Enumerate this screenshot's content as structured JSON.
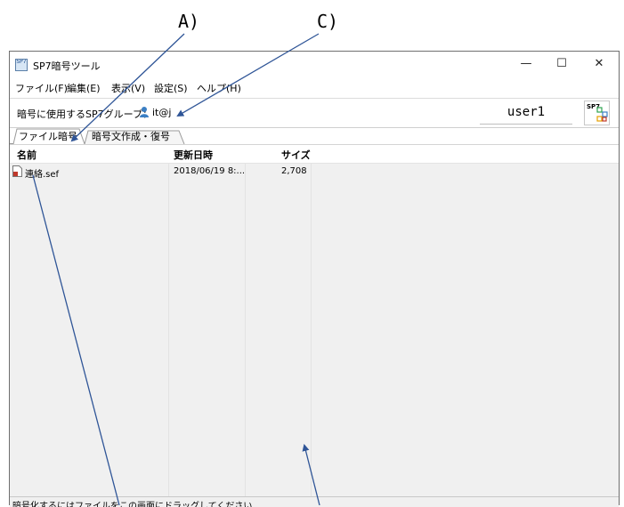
{
  "callouts": {
    "a": "A)",
    "c": "C)"
  },
  "window": {
    "title": "SP7暗号ツール",
    "app_icon_text": "SP7",
    "controls": {
      "minimize": "—",
      "maximize": "☐",
      "close": "✕"
    }
  },
  "menu": [
    {
      "label": "ファイル(F)"
    },
    {
      "label": "編集(E)"
    },
    {
      "label": "表示(V)"
    },
    {
      "label": "設定(S)"
    },
    {
      "label": "ヘルプ(H)"
    }
  ],
  "group_row": {
    "label": "暗号に使用するSP7グループ：",
    "value": "it@j",
    "user": "user1",
    "logo_text": "SP7"
  },
  "tabs": [
    {
      "label": "ファイル暗号"
    },
    {
      "label": "暗号文作成・復号"
    }
  ],
  "table": {
    "columns": [
      "名前",
      "更新日時",
      "サイズ"
    ],
    "rows": [
      {
        "name": "連絡.sef",
        "date": "2018/06/19 8:...",
        "size": "2,708"
      }
    ]
  },
  "status": {
    "text": "暗号化するにはファイルをこの画面にドラッグしてください"
  },
  "colors": {
    "arrow": "#2f5597",
    "person_icon": "#3b7fc4",
    "file_icon": "#c0392b"
  }
}
